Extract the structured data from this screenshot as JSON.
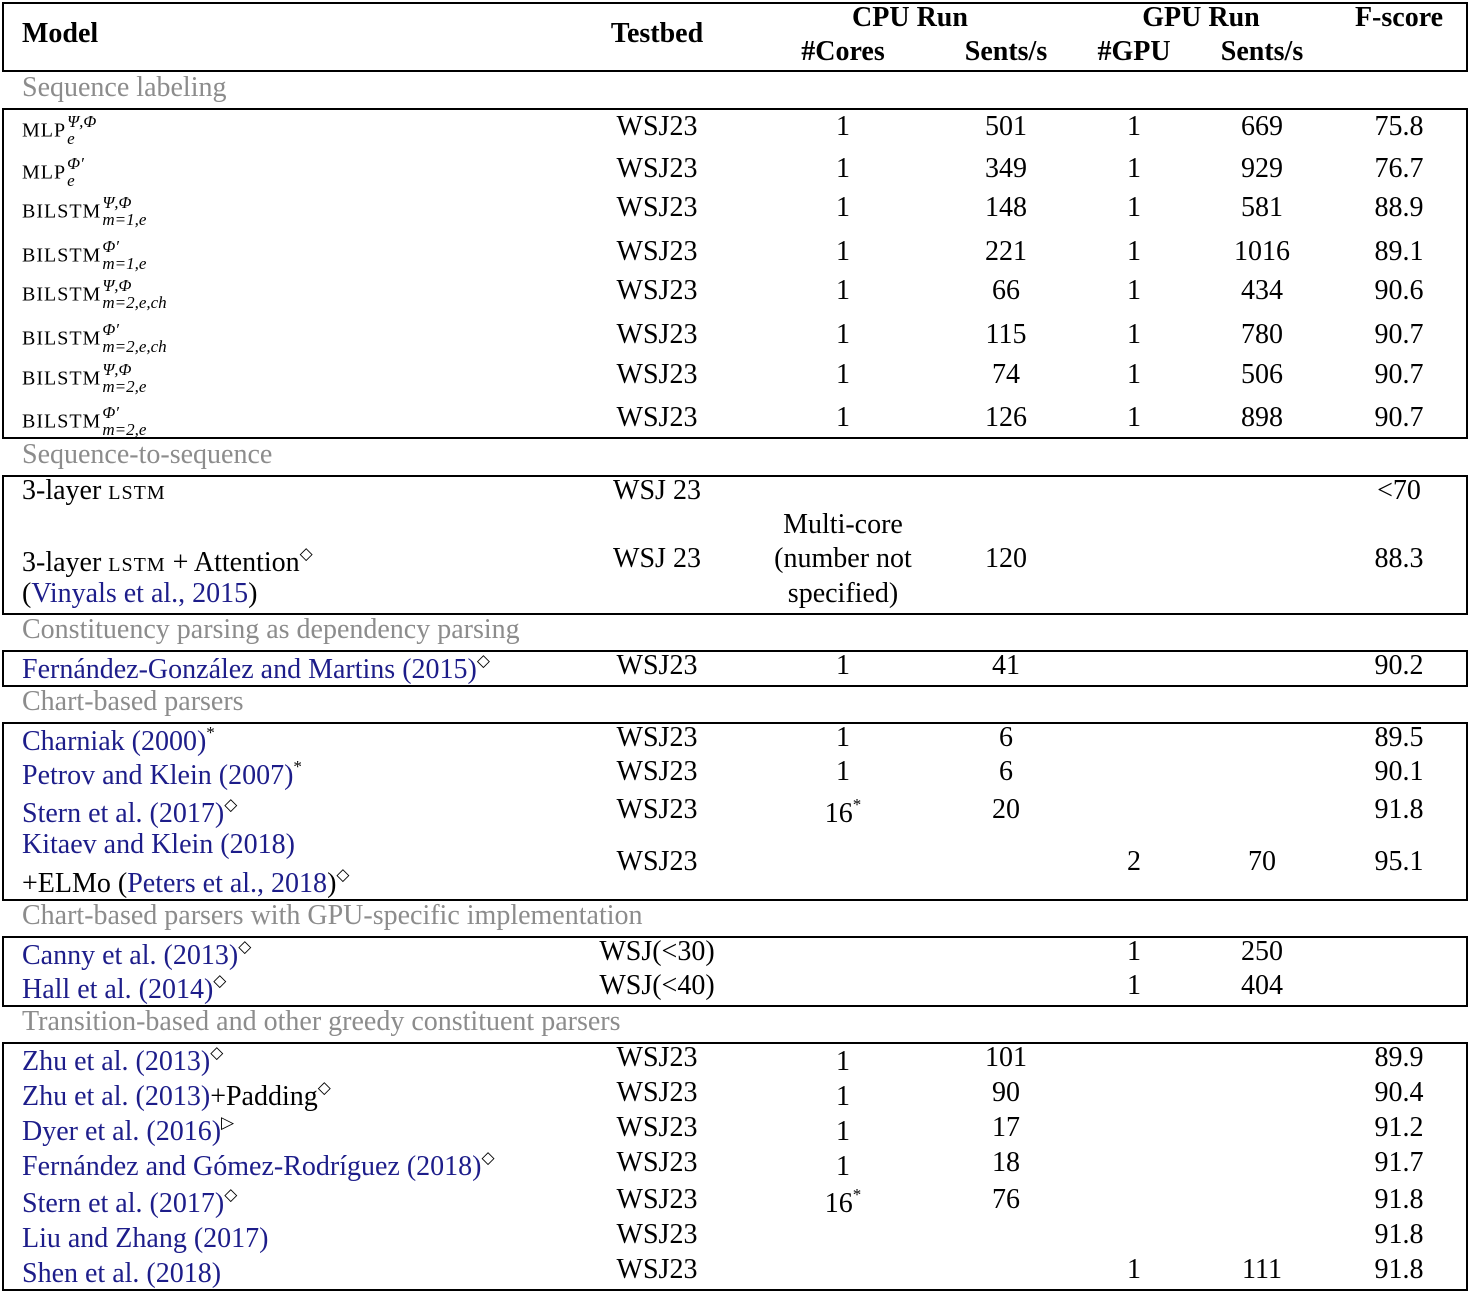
{
  "header": {
    "model": "Model",
    "testbed": "Testbed",
    "cpu_run": "CPU Run",
    "gpu_run": "GPU Run",
    "fscore": "F-score",
    "cores": "#Cores",
    "cpu_sents": "Sents/s",
    "gpu": "#GPU",
    "gpu_sents": "Sents/s"
  },
  "sections": {
    "seq_label": "Sequence labeling",
    "seq2seq": "Sequence-to-sequence",
    "const_dep": "Constituency parsing as dependency parsing",
    "chart": "Chart-based parsers",
    "chart_gpu": "Chart-based parsers with GPU-specific implementation",
    "transition": "Transition-based and other greedy constituent parsers"
  },
  "rows": [
    {
      "base": "MLP",
      "sup": "Ψ,Φ",
      "sub": "e",
      "testbed": "WSJ23",
      "cores": "1",
      "cpu": "501",
      "gpu": "1",
      "gpus": "669",
      "f": "75.8"
    },
    {
      "base": "MLP",
      "sup": "Φ′",
      "sub": "e",
      "testbed": "WSJ23",
      "cores": "1",
      "cpu": "349",
      "gpu": "1",
      "gpus": "929",
      "f": "76.7"
    },
    {
      "base": "BILSTM",
      "sup": "Ψ,Φ",
      "sub": "m=1,e",
      "testbed": "WSJ23",
      "cores": "1",
      "cpu": "148",
      "gpu": "1",
      "gpus": "581",
      "f": "88.9"
    },
    {
      "base": "BILSTM",
      "sup": "Φ′",
      "sub": "m=1,e",
      "testbed": "WSJ23",
      "cores": "1",
      "cpu": "221",
      "gpu": "1",
      "gpus": "1016",
      "f": "89.1"
    },
    {
      "base": "BILSTM",
      "sup": "Ψ,Φ",
      "sub": "m=2,e,ch",
      "testbed": "WSJ23",
      "cores": "1",
      "cpu": "66",
      "gpu": "1",
      "gpus": "434",
      "f": "90.6"
    },
    {
      "base": "BILSTM",
      "sup": "Φ′",
      "sub": "m=2,e,ch",
      "testbed": "WSJ23",
      "cores": "1",
      "cpu": "115",
      "gpu": "1",
      "gpus": "780",
      "f": "90.7"
    },
    {
      "base": "BILSTM",
      "sup": "Ψ,Φ",
      "sub": "m=2,e",
      "testbed": "WSJ23",
      "cores": "1",
      "cpu": "74",
      "gpu": "1",
      "gpus": "506",
      "f": "90.7"
    },
    {
      "base": "BILSTM",
      "sup": "Φ′",
      "sub": "m=2,e",
      "testbed": "WSJ23",
      "cores": "1",
      "cpu": "126",
      "gpu": "1",
      "gpus": "898",
      "f": "90.7"
    }
  ],
  "seq2seq": {
    "r1_model_pre": "3-layer ",
    "r1_model_sc": "LSTM",
    "r1_testbed": "WSJ 23",
    "r1_f": "<70",
    "r2_model_pre": "3-layer ",
    "r2_model_sc": "LSTM",
    "r2_model_post": " + Attention",
    "r2_sup": "◇",
    "r2_cite_open": "(",
    "r2_cite": "Vinyals et al., 2015",
    "r2_cite_close": ")",
    "r2_testbed": "WSJ 23",
    "r2_cores_1": "Multi-core",
    "r2_cores_2": "(number not",
    "r2_cores_3": "specified)",
    "r2_cpu": "120",
    "r2_f": "88.3"
  },
  "const_dep": {
    "model": "Fernández-González and Martins",
    "year": "(2015)",
    "sup": "◇",
    "testbed": "WSJ23",
    "cores": "1",
    "cpu": "41",
    "f": "90.2"
  },
  "chart": {
    "r1_model": "Charniak",
    "r1_year": "(2000)",
    "r1_sup": "*",
    "r1_testbed": "WSJ23",
    "r1_cores": "1",
    "r1_cpu": "6",
    "r1_f": "89.5",
    "r2_model": "Petrov and Klein",
    "r2_year": "(2007)",
    "r2_sup": "*",
    "r2_testbed": "WSJ23",
    "r2_cores": "1",
    "r2_cpu": "6",
    "r2_f": "90.1",
    "r3_model": "Stern et al.",
    "r3_year": "(2017)",
    "r3_sup": "◇",
    "r3_testbed": "WSJ23",
    "r3_cores": "16",
    "r3_cores_sup": "*",
    "r3_cpu": "20",
    "r3_f": "91.8",
    "r4_model": "Kitaev and Klein",
    "r4_year": "(2018)",
    "r4_line2_pre": "+ELMo (",
    "r4_line2_cite": "Peters et al., 2018",
    "r4_line2_close": ")",
    "r4_sup": "◇",
    "r4_testbed": "WSJ23",
    "r4_gpu": "2",
    "r4_gpus": "70",
    "r4_f": "95.1"
  },
  "chart_gpu": {
    "r1_model": "Canny et al.",
    "r1_year": "(2013)",
    "r1_sup": "◇",
    "r1_testbed": "WSJ(<30)",
    "r1_gpu": "1",
    "r1_gpus": "250",
    "r2_model": "Hall et al.",
    "r2_year": "(2014)",
    "r2_sup": "◇",
    "r2_testbed": "WSJ(<40)",
    "r2_gpu": "1",
    "r2_gpus": "404"
  },
  "transition": [
    {
      "model": "Zhu et al.",
      "year": "(2013)",
      "post": "",
      "sup": "◇",
      "testbed": "WSJ23",
      "cores": "1",
      "cores_sup": "",
      "cpu": "101",
      "gpu": "",
      "gpus": "",
      "f": "89.9"
    },
    {
      "model": "Zhu et al.",
      "year": "(2013)",
      "post": "+Padding",
      "sup": "◇",
      "testbed": "WSJ23",
      "cores": "1",
      "cores_sup": "",
      "cpu": "90",
      "gpu": "",
      "gpus": "",
      "f": "90.4"
    },
    {
      "model": "Dyer et al.",
      "year": "(2016)",
      "post": "",
      "sup": "▷",
      "testbed": "WSJ23",
      "cores": "1",
      "cores_sup": "",
      "cpu": "17",
      "gpu": "",
      "gpus": "",
      "f": "91.2"
    },
    {
      "model": "Fernández and Gómez-Rodríguez",
      "year": "(2018)",
      "post": "",
      "sup": "◇",
      "testbed": "WSJ23",
      "cores": "1",
      "cores_sup": "",
      "cpu": "18",
      "gpu": "",
      "gpus": "",
      "f": "91.7"
    },
    {
      "model": "Stern et al.",
      "year": "(2017)",
      "post": "",
      "sup": "◇",
      "testbed": "WSJ23",
      "cores": "16",
      "cores_sup": "*",
      "cpu": "76",
      "gpu": "",
      "gpus": "",
      "f": "91.8"
    },
    {
      "model": "Liu and Zhang",
      "year": "(2017)",
      "post": "",
      "sup": "",
      "testbed": "WSJ23",
      "cores": "",
      "cores_sup": "",
      "cpu": "",
      "gpu": "",
      "gpus": "",
      "f": "91.8"
    },
    {
      "model": "Shen et al.",
      "year": "(2018)",
      "post": "",
      "sup": "",
      "testbed": "WSJ23",
      "cores": "",
      "cores_sup": "",
      "cpu": "",
      "gpu": "1",
      "gpus": "111",
      "f": "91.8"
    }
  ]
}
